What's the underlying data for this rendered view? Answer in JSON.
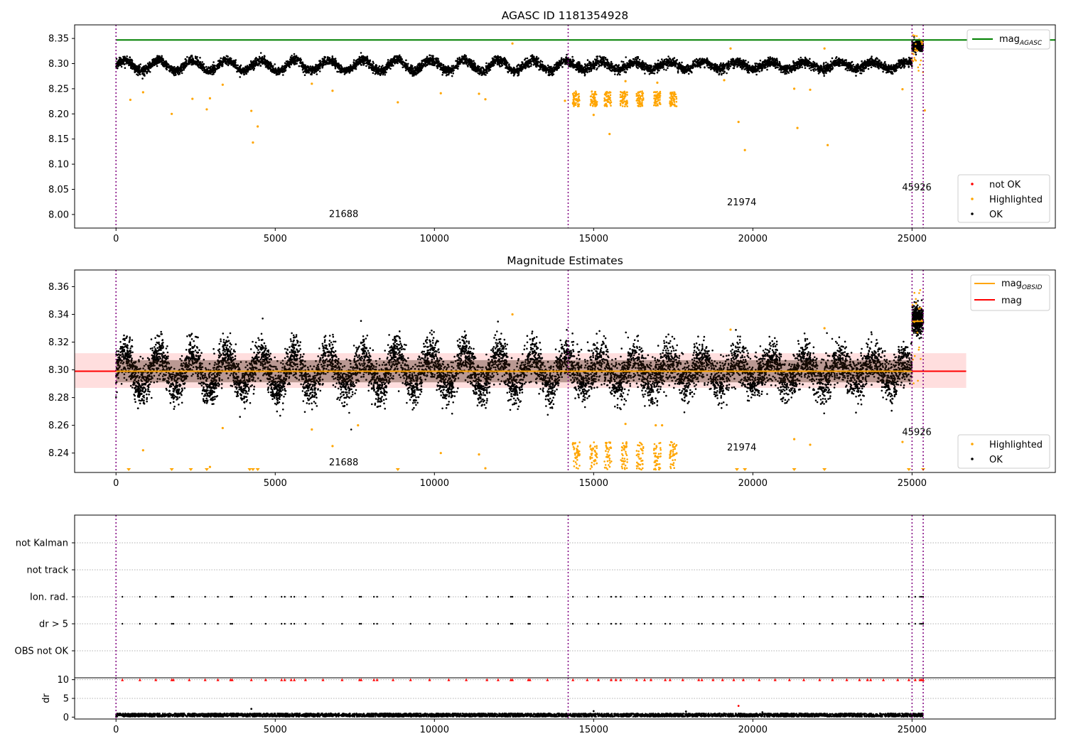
{
  "chart_data": [
    {
      "type": "scatter",
      "title": "AGASC ID 1181354928",
      "xlabel": "",
      "ylabel": "",
      "xlim": [
        -1300,
        29500
      ],
      "ylim": [
        7.973,
        8.377
      ],
      "xticks": [
        0,
        5000,
        10000,
        15000,
        20000,
        25000
      ],
      "yticks": [
        8.0,
        8.05,
        8.1,
        8.15,
        8.2,
        8.25,
        8.3,
        8.35
      ],
      "ytick_labels": [
        "8.00",
        "8.05",
        "8.10",
        "8.15",
        "8.20",
        "8.25",
        "8.30",
        "8.35"
      ],
      "hlines": [
        {
          "name": "mag_AGASC",
          "y": 8.347,
          "color": "#008000"
        }
      ],
      "vlines": [
        0,
        14200,
        25000,
        25350
      ],
      "obsid_labels": [
        {
          "text": "21688",
          "x": 7150,
          "y": 7.995
        },
        {
          "text": "21974",
          "x": 19650,
          "y": 8.018
        },
        {
          "text": "45926",
          "x": 25150,
          "y": 8.048
        }
      ],
      "series": [
        {
          "name": "not OK",
          "color": "#ff0000",
          "points": []
        },
        {
          "name": "Highlighted",
          "color": "#ffa500",
          "points": [
            [
              450,
              8.228
            ],
            [
              850,
              8.243
            ],
            [
              1750,
              8.2
            ],
            [
              2400,
              8.23
            ],
            [
              2850,
              8.209
            ],
            [
              2950,
              8.231
            ],
            [
              3350,
              8.258
            ],
            [
              4250,
              8.206
            ],
            [
              4300,
              8.143
            ],
            [
              4450,
              8.175
            ],
            [
              6150,
              8.26
            ],
            [
              6800,
              8.246
            ],
            [
              8850,
              8.223
            ],
            [
              10200,
              8.241
            ],
            [
              11400,
              8.24
            ],
            [
              11600,
              8.229
            ],
            [
              12450,
              8.34
            ],
            [
              14100,
              8.226
            ],
            [
              15000,
              8.198
            ],
            [
              15500,
              8.16
            ],
            [
              16000,
              8.265
            ],
            [
              17000,
              8.262
            ],
            [
              19100,
              8.267
            ],
            [
              19300,
              8.33
            ],
            [
              19550,
              8.184
            ],
            [
              19750,
              8.128
            ],
            [
              21300,
              8.25
            ],
            [
              21400,
              8.172
            ],
            [
              21800,
              8.248
            ],
            [
              22250,
              8.33
            ],
            [
              22350,
              8.138
            ],
            [
              24700,
              8.249
            ],
            [
              25400,
              8.207
            ]
          ]
        },
        {
          "name": "OK",
          "color": "#000000",
          "points": []
        }
      ],
      "dense_bands": {
        "ok_baseline": 8.296,
        "highlighted_clusters_x": [
          14450,
          15000,
          15450,
          15950,
          16450,
          17000,
          17500
        ],
        "highlighted_cluster_y": [
          8.215,
          8.245
        ],
        "last_obsid_mag": 8.335
      },
      "legend": {
        "loc": "lower right",
        "entries": [
          "not OK",
          "Highlighted",
          "OK"
        ]
      },
      "hline_legend": {
        "loc": "upper right",
        "entries": [
          "mag_AGASC"
        ]
      }
    },
    {
      "type": "scatter",
      "title": "Magnitude Estimates",
      "xlabel": "",
      "ylabel": "",
      "xlim": [
        -1300,
        29500
      ],
      "ylim": [
        8.226,
        8.372
      ],
      "xticks": [
        0,
        5000,
        10000,
        15000,
        20000,
        25000
      ],
      "yticks": [
        8.24,
        8.26,
        8.28,
        8.3,
        8.32,
        8.34,
        8.36
      ],
      "ytick_labels": [
        "8.24",
        "8.26",
        "8.28",
        "8.30",
        "8.32",
        "8.34",
        "8.36"
      ],
      "mag": 8.299,
      "mag_band": [
        8.287,
        8.312
      ],
      "mag_obsid": [
        {
          "x0": 0,
          "x1": 14200,
          "y": 8.299
        },
        {
          "x0": 14200,
          "x1": 25000,
          "y": 8.299
        },
        {
          "x0": 25000,
          "x1": 25350,
          "y": 8.335
        }
      ],
      "vlines": [
        0,
        14200,
        25000,
        25350
      ],
      "obsid_labels": [
        {
          "text": "21688",
          "x": 7150,
          "y": 8.231
        },
        {
          "text": "21974",
          "x": 19650,
          "y": 8.242
        },
        {
          "text": "45926",
          "x": 25150,
          "y": 8.253
        }
      ],
      "series": [
        {
          "name": "Highlighted",
          "color": "#ffa500",
          "points": [
            [
              850,
              8.242
            ],
            [
              2950,
              8.23
            ],
            [
              3350,
              8.258
            ],
            [
              6150,
              8.257
            ],
            [
              6800,
              8.245
            ],
            [
              7600,
              8.26
            ],
            [
              10200,
              8.24
            ],
            [
              11400,
              8.239
            ],
            [
              11600,
              8.229
            ],
            [
              12450,
              8.34
            ],
            [
              16000,
              8.261
            ],
            [
              16950,
              8.26
            ],
            [
              17150,
              8.26
            ],
            [
              19300,
              8.329
            ],
            [
              21300,
              8.25
            ],
            [
              21800,
              8.246
            ],
            [
              22250,
              8.33
            ],
            [
              24700,
              8.248
            ]
          ]
        },
        {
          "name": "OK",
          "color": "#000000",
          "points": []
        }
      ],
      "legend": {
        "loc": "lower right",
        "entries": [
          "Highlighted",
          "OK"
        ]
      },
      "line_legend": {
        "loc": "upper right",
        "entries": [
          "mag_OBSID",
          "mag"
        ]
      }
    },
    {
      "type": "scatter",
      "title": "",
      "xlabel": "",
      "ylabel": "",
      "xlim": [
        -1300,
        29500
      ],
      "categories": [
        "OBS not OK",
        "dr > 5",
        "Ion. rad.",
        "not track",
        "not Kalman"
      ],
      "flagged_times": [
        200,
        750,
        1250,
        1750,
        1800,
        2300,
        2800,
        3200,
        3600,
        3650,
        4250,
        4700,
        5200,
        5300,
        5500,
        5600,
        5950,
        6500,
        7100,
        7650,
        7700,
        8100,
        8200,
        8700,
        9250,
        9850,
        10450,
        11000,
        11650,
        12000,
        12400,
        12450,
        12950,
        13000,
        13550,
        14350,
        14800,
        15150,
        15550,
        15700,
        15850,
        16350,
        16600,
        16800,
        17250,
        17400,
        17800,
        18300,
        18400,
        18750,
        19050,
        19400,
        19700,
        20200,
        20700,
        21150,
        21600,
        22100,
        22500,
        22950,
        23350,
        23600,
        23700,
        24100,
        24550,
        24900,
        25100,
        25250,
        25300,
        25350
      ],
      "flag_rows": [
        "dr > 5",
        "Ion. rad."
      ],
      "vlines": [
        0,
        14200,
        25000,
        25350
      ]
    },
    {
      "type": "scatter",
      "title": "",
      "xlabel": "",
      "ylabel": "dr",
      "xlim": [
        -1300,
        29500
      ],
      "ylim": [
        -0.5,
        10.5
      ],
      "xticks": [
        0,
        5000,
        10000,
        15000,
        20000,
        25000
      ],
      "yticks": [
        0,
        5,
        10
      ],
      "ytick_labels": [
        "0",
        "5",
        "10"
      ],
      "capped_value": 10,
      "ok_dr_range": [
        0.1,
        1.0
      ],
      "outliers": [
        [
          4250,
          2.2
        ],
        [
          15000,
          1.6
        ],
        [
          17900,
          1.5
        ],
        [
          19550,
          3.0
        ],
        [
          20300,
          1.3
        ]
      ],
      "vlines": [
        0,
        14200,
        25000,
        25350
      ]
    }
  ]
}
